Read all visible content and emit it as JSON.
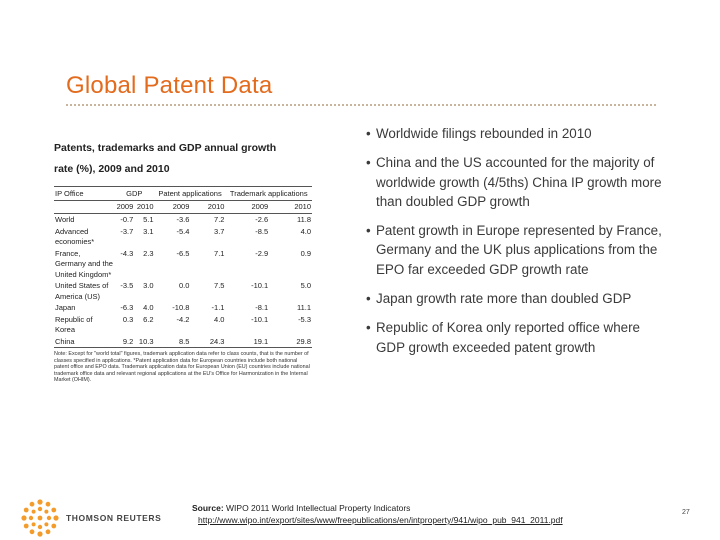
{
  "slide": {
    "title": "Global Patent Data",
    "page_number": "27"
  },
  "table": {
    "heading_line1": "Patents, trademarks and GDP annual growth",
    "heading_line2": "rate (%), 2009 and 2010",
    "col_ip_office": "IP Office",
    "col_gdp": "GDP",
    "col_patent": "Patent applications",
    "col_trademark": "Trademark applications",
    "years": [
      "2009",
      "2010",
      "2009",
      "2010",
      "2009",
      "2010"
    ],
    "rows": [
      {
        "label": "World",
        "values": [
          "-0.7",
          "5.1",
          "-3.6",
          "7.2",
          "-2.6",
          "11.8"
        ]
      },
      {
        "label": "Advanced economies*",
        "values": [
          "-3.7",
          "3.1",
          "-5.4",
          "3.7",
          "-8.5",
          "4.0"
        ]
      },
      {
        "label": "France, Germany and the United Kingdom*",
        "values": [
          "-4.3",
          "2.3",
          "-6.5",
          "7.1",
          "-2.9",
          "0.9"
        ]
      },
      {
        "label": "United States of America (US)",
        "values": [
          "-3.5",
          "3.0",
          "0.0",
          "7.5",
          "-10.1",
          "5.0"
        ]
      },
      {
        "label": "Japan",
        "values": [
          "-6.3",
          "4.0",
          "-10.8",
          "-1.1",
          "-8.1",
          "11.1"
        ]
      },
      {
        "label": "Republic of Korea",
        "values": [
          "0.3",
          "6.2",
          "-4.2",
          "4.0",
          "-10.1",
          "-5.3"
        ]
      },
      {
        "label": "China",
        "values": [
          "9.2",
          "10.3",
          "8.5",
          "24.3",
          "19.1",
          "29.8"
        ]
      }
    ],
    "note": "Note: Except for \"world total\" figures, trademark application data refer to class counts, that is the number of classes specified in applications. *Patent application data for European countries include both national patent office and EPO data. Trademark application data for European Union (EU) countries include national trademark office data and relevant regional applications at the EU's Office for Harmonization in the Internal Market (OHIM)."
  },
  "bullets": [
    "Worldwide filings rebounded in 2010",
    "China and the US accounted for the majority of worldwide growth (4/5ths) China IP growth more than doubled GDP growth",
    "Patent growth in Europe represented by France, Germany and the UK plus applications from the EPO far exceeded GDP growth rate",
    "Japan growth rate more than doubled GDP",
    "Republic of Korea only reported office where GDP growth exceeded patent growth"
  ],
  "footer": {
    "logo_text": "THOMSON REUTERS",
    "source_label": "Source:",
    "source_text": "WIPO 2011 World Intellectual Property Indicators",
    "source_link": "http://www.wipo.int/export/sites/www/freepublications/en/intproperty/941/wipo_pub_941_2011.pdf"
  },
  "colors": {
    "title": "#e36b1d",
    "logo_accent": "#f39c2b"
  }
}
